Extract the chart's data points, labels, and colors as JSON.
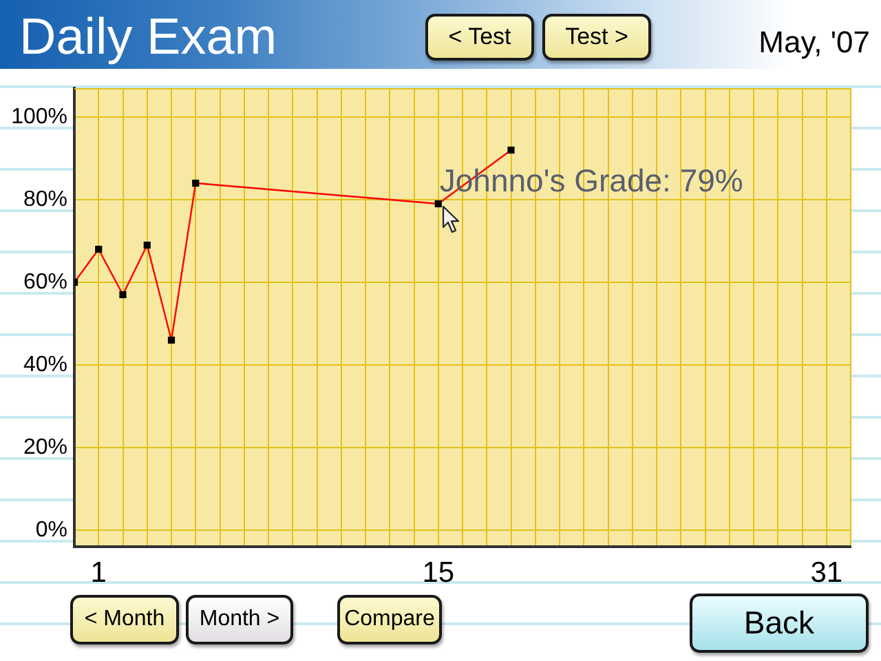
{
  "chart_data": {
    "type": "line",
    "title": "Daily Exam",
    "subtitle": "May, '07",
    "x": [
      0,
      1,
      2,
      3,
      4,
      5,
      15,
      18
    ],
    "series": [
      {
        "color": "#ff0000",
        "colors": [
          "#000000",
          "#000000",
          "#000000",
          "#000000",
          "#000000",
          "#000000",
          "#000000",
          "#000000"
        ],
        "values": [
          60,
          68,
          57,
          69,
          46,
          84,
          79,
          92
        ]
      }
    ],
    "xlim": [
      0,
      32
    ],
    "xticks": [
      {
        "value": 0,
        "label": null
      },
      1,
      {
        "value": 2,
        "label": null
      },
      {
        "value": 3,
        "label": null
      },
      {
        "value": 4,
        "label": null
      },
      {
        "value": 5,
        "label": null
      },
      {
        "value": 6,
        "label": null
      },
      {
        "value": 7,
        "label": null
      },
      {
        "value": 8,
        "label": null
      },
      {
        "value": 9,
        "label": null
      },
      {
        "value": 10,
        "label": null
      },
      {
        "value": 11,
        "label": null
      },
      {
        "value": 12,
        "label": null
      },
      {
        "value": 13,
        "label": null
      },
      {
        "value": 14,
        "label": null
      },
      15,
      {
        "value": 16,
        "label": null
      },
      {
        "value": 17,
        "label": null
      },
      {
        "value": 18,
        "label": null
      },
      {
        "value": 19,
        "label": null
      },
      {
        "value": 20,
        "label": null
      },
      {
        "value": 21,
        "label": null
      },
      {
        "value": 22,
        "label": null
      },
      {
        "value": 23,
        "label": null
      },
      {
        "value": 24,
        "label": null
      },
      {
        "value": 25,
        "label": null
      },
      {
        "value": 26,
        "label": null
      },
      {
        "value": 27,
        "label": null
      },
      {
        "value": 28,
        "label": null
      },
      {
        "value": 29,
        "label": null
      },
      {
        "value": 30,
        "label": null
      },
      31,
      {
        "value": 32,
        "label": null
      }
    ],
    "ylim": [
      -4,
      107
    ],
    "yticks": [
      {
        "value": 0,
        "label": "0%"
      },
      {
        "value": 20,
        "label": "20%"
      },
      {
        "value": 40,
        "label": "40%"
      },
      {
        "value": 60,
        "label": "60%"
      },
      {
        "value": 80,
        "label": "80%"
      },
      {
        "value": 100,
        "label": "100%"
      }
    ],
    "grid": true,
    "legend": false,
    "marker": "square",
    "line_style": "solid",
    "annotations": [
      "< Test",
      "Test >",
      {
        "text": "Johnno's Grade: 79%",
        "x": 15,
        "y": 79
      },
      "< Month",
      "Month >",
      "Compare",
      "Back"
    ]
  }
}
